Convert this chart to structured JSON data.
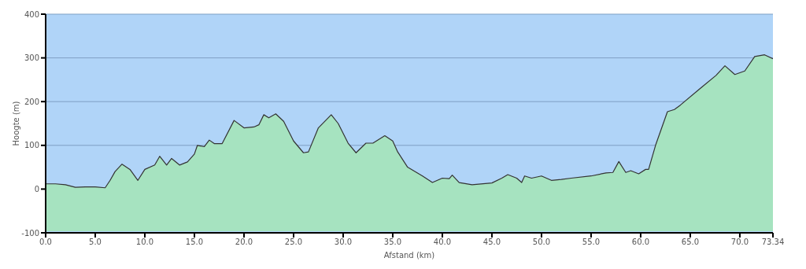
{
  "chart_data": {
    "type": "area",
    "xlabel": "Afstand   (km)",
    "ylabel": "Hoogte (m)",
    "x": [
      0,
      1,
      2,
      3,
      4,
      5,
      6,
      6.5,
      7,
      7.7,
      8.5,
      9.3,
      10,
      11,
      11.5,
      12.2,
      12.7,
      13.5,
      14.3,
      15,
      15.3,
      16,
      16.5,
      17,
      17.8,
      19,
      20,
      21,
      21.5,
      22,
      22.5,
      23.2,
      24,
      25,
      26,
      26.5,
      27.5,
      28.8,
      29.5,
      30.5,
      31.3,
      32.3,
      33,
      34.2,
      35,
      35.5,
      36.5,
      38,
      39,
      40,
      40.7,
      41,
      41.7,
      43,
      45,
      46,
      46.6,
      47.5,
      48,
      48.3,
      49,
      50,
      51,
      52,
      53,
      55,
      56.5,
      57.2,
      57.8,
      58.5,
      59,
      59.8,
      60.5,
      60.8,
      61.5,
      62.7,
      63.4,
      64,
      66,
      67.6,
      68.5,
      69.5,
      70.5,
      71.5,
      72.5,
      73.34
    ],
    "series": [
      {
        "color": "#a6e3c0",
        "values": [
          12,
          12,
          10,
          4,
          5,
          5,
          3,
          20,
          40,
          57,
          45,
          20,
          45,
          55,
          75,
          55,
          70,
          55,
          62,
          80,
          100,
          97,
          112,
          104,
          104,
          157,
          140,
          142,
          147,
          170,
          163,
          172,
          155,
          110,
          83,
          85,
          140,
          170,
          150,
          105,
          83,
          105,
          105,
          122,
          110,
          85,
          50,
          30,
          15,
          25,
          24,
          32,
          15,
          10,
          14,
          25,
          33,
          25,
          15,
          30,
          25,
          30,
          20,
          22,
          25,
          30,
          37,
          38,
          63,
          38,
          42,
          35,
          45,
          45,
          100,
          177,
          182,
          192,
          230,
          260,
          282,
          262,
          270,
          303,
          307,
          298
        ]
      }
    ],
    "xlim": [
      0,
      73.34
    ],
    "ylim": [
      -100,
      400
    ],
    "xticks": [
      {
        "value": 0,
        "label": "0.0"
      },
      {
        "value": 5,
        "label": "5.0"
      },
      {
        "value": 10,
        "label": "10.0"
      },
      {
        "value": 15,
        "label": "15.0"
      },
      {
        "value": 20,
        "label": "20.0"
      },
      {
        "value": 25,
        "label": "25.0"
      },
      {
        "value": 30,
        "label": "30.0"
      },
      {
        "value": 35,
        "label": "35.0"
      },
      {
        "value": 40,
        "label": "40.0"
      },
      {
        "value": 45,
        "label": "45.0"
      },
      {
        "value": 50,
        "label": "50.0"
      },
      {
        "value": 55,
        "label": "55.0"
      },
      {
        "value": 60,
        "label": "60.0"
      },
      {
        "value": 65,
        "label": "65.0"
      },
      {
        "value": 70,
        "label": "70.0"
      },
      73.34
    ],
    "yticks": [
      -100,
      0,
      100,
      200,
      300,
      400
    ],
    "grid": "y",
    "legend": false
  }
}
